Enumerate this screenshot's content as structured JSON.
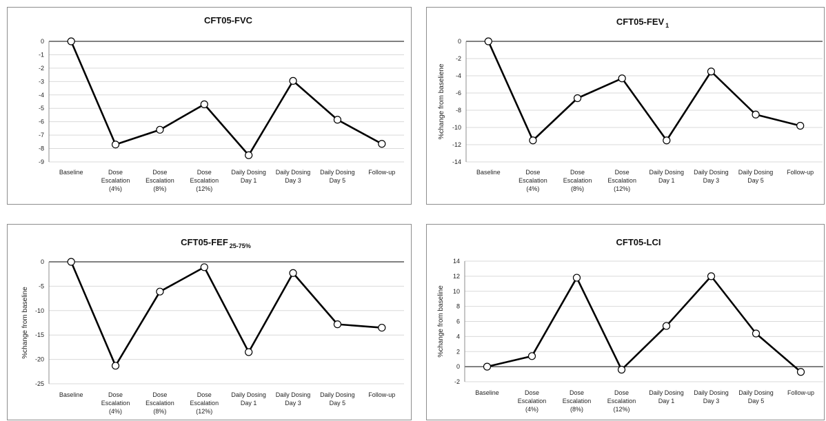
{
  "chart_data": [
    {
      "type": "line",
      "title": "CFT05-FVC",
      "title_sub": "",
      "ylabel": "",
      "categories": [
        [
          "Baseline"
        ],
        [
          "Dose",
          "Escalation",
          "(4%)"
        ],
        [
          "Dose",
          "Escalation",
          "(8%)"
        ],
        [
          "Dose",
          "Escalation",
          "(12%)"
        ],
        [
          "Daily Dosing",
          "Day 1"
        ],
        [
          "Daily Dosing",
          "Day 3"
        ],
        [
          "Daily Dosing",
          "Day 5"
        ],
        [
          "Follow-up"
        ]
      ],
      "values": [
        0,
        -7.7,
        -6.6,
        -4.7,
        -8.5,
        -2.95,
        -5.85,
        -7.65
      ],
      "ylim": [
        -9,
        0
      ],
      "yticks": [
        0,
        -1,
        -2,
        -3,
        -4,
        -5,
        -6,
        -7,
        -8,
        -9
      ],
      "grid": true
    },
    {
      "type": "line",
      "title": "CFT05-FEV",
      "title_sub": "1",
      "ylabel": "%change from baseliene",
      "categories": [
        [
          "Baseline"
        ],
        [
          "Dose",
          "Escalation",
          "(4%)"
        ],
        [
          "Dose",
          "Escalation",
          "(8%)"
        ],
        [
          "Dose",
          "Escalation",
          "(12%)"
        ],
        [
          "Daily Dosing",
          "Day 1"
        ],
        [
          "Daily Dosing",
          "Day 3"
        ],
        [
          "Daily Dosing",
          "Day 5"
        ],
        [
          "Follow-up"
        ]
      ],
      "values": [
        0,
        -11.5,
        -6.6,
        -4.3,
        -11.5,
        -3.5,
        -8.5,
        -9.8
      ],
      "ylim": [
        -14,
        0
      ],
      "yticks": [
        0,
        -2,
        -4,
        -6,
        -8,
        -10,
        -12,
        -14
      ],
      "grid": true
    },
    {
      "type": "line",
      "title": "CFT05-FEF",
      "title_sub": "25-75%",
      "ylabel": "%change from baseline",
      "categories": [
        [
          "Baseline"
        ],
        [
          "Dose",
          "Escalation",
          "(4%)"
        ],
        [
          "Dose",
          "Escalation",
          "(8%)"
        ],
        [
          "Dose",
          "Escalation",
          "(12%)"
        ],
        [
          "Daily Dosing",
          "Day 1"
        ],
        [
          "Daily Dosing",
          "Day 3"
        ],
        [
          "Daily Dosing",
          "Day 5"
        ],
        [
          "Follow-up"
        ]
      ],
      "values": [
        0,
        -21.3,
        -6.1,
        -1.1,
        -18.5,
        -2.3,
        -12.8,
        -13.5
      ],
      "ylim": [
        -25,
        0
      ],
      "yticks": [
        0,
        -5,
        -10,
        -15,
        -20,
        -25
      ],
      "grid": true
    },
    {
      "type": "line",
      "title": "CFT05-LCI",
      "title_sub": "",
      "ylabel": "%change from baseline",
      "categories": [
        [
          "Baseline"
        ],
        [
          "Dose",
          "Escalation",
          "(4%)"
        ],
        [
          "Dose",
          "Escalation",
          "(8%)"
        ],
        [
          "Dose",
          "Escalation",
          "(12%)"
        ],
        [
          "Daily Dosing",
          "Day 1"
        ],
        [
          "Daily Dosing",
          "Day 3"
        ],
        [
          "Daily Dosing",
          "Day 5"
        ],
        [
          "Follow-up"
        ]
      ],
      "values": [
        0,
        1.4,
        11.8,
        -0.4,
        5.4,
        12.0,
        4.4,
        -0.7
      ],
      "ylim": [
        -2,
        14
      ],
      "yticks": [
        14,
        12,
        10,
        8,
        6,
        4,
        2,
        0,
        -2
      ],
      "grid": true
    }
  ]
}
